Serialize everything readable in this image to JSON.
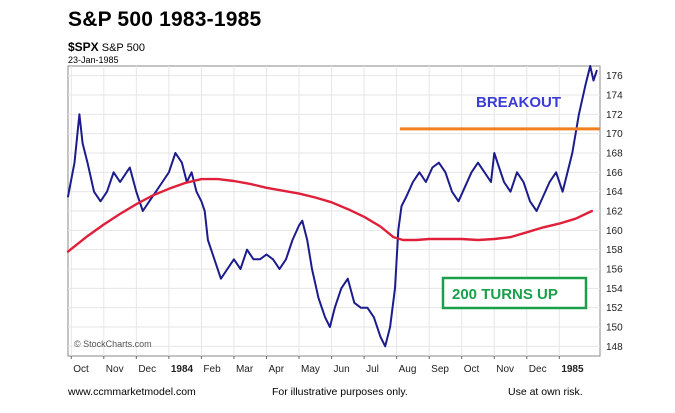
{
  "header": {
    "title": "S&P 500 1983-1985",
    "symbol": "$SPX",
    "symbol_name": "S&P 500",
    "date": "23-Jan-1985"
  },
  "footer": {
    "left": "www.ccmmarketmodel.com",
    "center": "For illustrative purposes only.",
    "right": "Use at own risk."
  },
  "watermark": "StockCharts.com",
  "colors": {
    "price": "#1c1c8c",
    "ma": "#e0203a",
    "breakout_line": "#f08020",
    "breakout_text": "#3b3bd6",
    "turns_up": "#1aa04a",
    "grid": "#e6e6e6"
  },
  "chart_data": {
    "type": "line",
    "ylim": [
      147,
      177
    ],
    "y_ticks": [
      148,
      150,
      152,
      154,
      156,
      158,
      160,
      162,
      164,
      166,
      168,
      170,
      172,
      174,
      176
    ],
    "x_ticks": [
      {
        "label": "Oct",
        "t": 0
      },
      {
        "label": "Nov",
        "t": 1
      },
      {
        "label": "Dec",
        "t": 2
      },
      {
        "label": "1984",
        "t": 3,
        "bold": true
      },
      {
        "label": "Feb",
        "t": 4
      },
      {
        "label": "Mar",
        "t": 5
      },
      {
        "label": "Apr",
        "t": 6
      },
      {
        "label": "May",
        "t": 7
      },
      {
        "label": "Jun",
        "t": 8
      },
      {
        "label": "Jul",
        "t": 9
      },
      {
        "label": "Aug",
        "t": 10
      },
      {
        "label": "Sep",
        "t": 11
      },
      {
        "label": "Oct",
        "t": 12
      },
      {
        "label": "Nov",
        "t": 13
      },
      {
        "label": "Dec",
        "t": 14
      },
      {
        "label": "1985",
        "t": 15,
        "bold": true
      }
    ],
    "x_range": [
      -0.1,
      16.25
    ],
    "series": [
      {
        "key": "price",
        "points": [
          [
            -0.1,
            163.5
          ],
          [
            0.1,
            167.0
          ],
          [
            0.25,
            172.0
          ],
          [
            0.35,
            169.0
          ],
          [
            0.5,
            167.0
          ],
          [
            0.7,
            164.0
          ],
          [
            0.9,
            163.0
          ],
          [
            1.1,
            164.0
          ],
          [
            1.3,
            166.0
          ],
          [
            1.5,
            165.0
          ],
          [
            1.8,
            166.5
          ],
          [
            2.0,
            164.0
          ],
          [
            2.2,
            162.0
          ],
          [
            2.4,
            163.0
          ],
          [
            2.6,
            164.0
          ],
          [
            2.8,
            165.0
          ],
          [
            3.0,
            166.0
          ],
          [
            3.2,
            168.0
          ],
          [
            3.4,
            167.0
          ],
          [
            3.55,
            165.0
          ],
          [
            3.7,
            166.0
          ],
          [
            3.85,
            164.0
          ],
          [
            4.0,
            163.0
          ],
          [
            4.1,
            162.0
          ],
          [
            4.2,
            159.0
          ],
          [
            4.4,
            157.0
          ],
          [
            4.6,
            155.0
          ],
          [
            4.8,
            156.0
          ],
          [
            5.0,
            157.0
          ],
          [
            5.2,
            156.0
          ],
          [
            5.4,
            158.0
          ],
          [
            5.6,
            157.0
          ],
          [
            5.8,
            157.0
          ],
          [
            6.0,
            157.5
          ],
          [
            6.2,
            157.0
          ],
          [
            6.4,
            156.0
          ],
          [
            6.6,
            157.0
          ],
          [
            6.8,
            159.0
          ],
          [
            7.0,
            160.5
          ],
          [
            7.1,
            161.0
          ],
          [
            7.25,
            159.0
          ],
          [
            7.4,
            156.0
          ],
          [
            7.6,
            153.0
          ],
          [
            7.8,
            151.0
          ],
          [
            7.95,
            150.0
          ],
          [
            8.1,
            152.0
          ],
          [
            8.3,
            154.0
          ],
          [
            8.5,
            155.0
          ],
          [
            8.7,
            152.5
          ],
          [
            8.9,
            152.0
          ],
          [
            9.1,
            152.0
          ],
          [
            9.3,
            151.0
          ],
          [
            9.5,
            149.0
          ],
          [
            9.65,
            148.0
          ],
          [
            9.8,
            150.0
          ],
          [
            9.95,
            154.0
          ],
          [
            10.05,
            160.0
          ],
          [
            10.15,
            162.5
          ],
          [
            10.3,
            163.5
          ],
          [
            10.5,
            165.0
          ],
          [
            10.7,
            166.0
          ],
          [
            10.9,
            165.0
          ],
          [
            11.1,
            166.5
          ],
          [
            11.3,
            167.0
          ],
          [
            11.5,
            166.0
          ],
          [
            11.7,
            164.0
          ],
          [
            11.9,
            163.0
          ],
          [
            12.1,
            164.5
          ],
          [
            12.3,
            166.0
          ],
          [
            12.5,
            167.0
          ],
          [
            12.7,
            166.0
          ],
          [
            12.9,
            165.0
          ],
          [
            13.0,
            168.0
          ],
          [
            13.1,
            167.0
          ],
          [
            13.3,
            165.0
          ],
          [
            13.5,
            164.0
          ],
          [
            13.7,
            166.0
          ],
          [
            13.9,
            165.0
          ],
          [
            14.1,
            163.0
          ],
          [
            14.3,
            162.0
          ],
          [
            14.5,
            163.5
          ],
          [
            14.7,
            165.0
          ],
          [
            14.9,
            166.0
          ],
          [
            15.1,
            164.0
          ],
          [
            15.25,
            166.0
          ],
          [
            15.4,
            168.0
          ],
          [
            15.6,
            172.0
          ],
          [
            15.8,
            175.0
          ],
          [
            15.95,
            177.0
          ],
          [
            16.05,
            175.5
          ],
          [
            16.15,
            176.5
          ]
        ]
      },
      {
        "key": "ma",
        "points": [
          [
            -0.1,
            157.8
          ],
          [
            0.5,
            159.4
          ],
          [
            1.0,
            160.6
          ],
          [
            1.5,
            161.7
          ],
          [
            2.0,
            162.7
          ],
          [
            2.5,
            163.6
          ],
          [
            3.0,
            164.3
          ],
          [
            3.5,
            164.9
          ],
          [
            4.0,
            165.3
          ],
          [
            4.5,
            165.3
          ],
          [
            5.0,
            165.1
          ],
          [
            5.5,
            164.8
          ],
          [
            6.0,
            164.4
          ],
          [
            6.5,
            164.1
          ],
          [
            7.0,
            163.8
          ],
          [
            7.5,
            163.4
          ],
          [
            8.0,
            162.9
          ],
          [
            8.5,
            162.2
          ],
          [
            9.0,
            161.4
          ],
          [
            9.5,
            160.4
          ],
          [
            9.9,
            159.3
          ],
          [
            10.2,
            159.0
          ],
          [
            10.6,
            159.0
          ],
          [
            11.0,
            159.1
          ],
          [
            11.5,
            159.1
          ],
          [
            12.0,
            159.1
          ],
          [
            12.5,
            159.0
          ],
          [
            13.0,
            159.1
          ],
          [
            13.5,
            159.3
          ],
          [
            14.0,
            159.8
          ],
          [
            14.5,
            160.3
          ],
          [
            15.0,
            160.7
          ],
          [
            15.5,
            161.2
          ],
          [
            16.0,
            162.0
          ]
        ]
      }
    ],
    "breakout_level": 170.5,
    "breakout_range": [
      10.1,
      16.25
    ],
    "annotations": [
      {
        "key": "breakout",
        "text": "BREAKOUT"
      },
      {
        "key": "turns_up",
        "text": "200 TURNS UP"
      }
    ]
  }
}
